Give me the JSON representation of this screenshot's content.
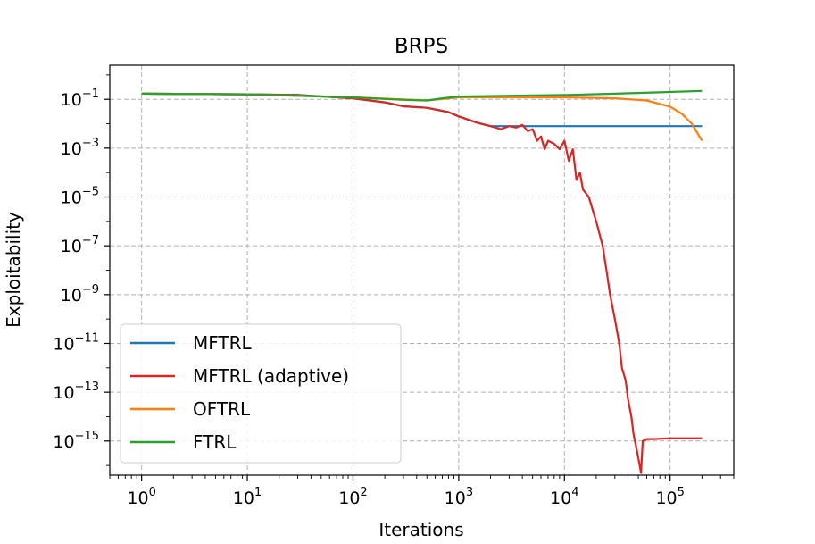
{
  "chart_data": {
    "type": "line",
    "title": "BRPS",
    "xlabel": "Iterations",
    "ylabel": "Exploitability",
    "xscale": "log",
    "yscale": "log",
    "xlim": [
      0.5,
      400000
    ],
    "ylim": [
      4e-17,
      2.5
    ],
    "grid": true,
    "grid_style": "dashed",
    "legend_position": "lower-left",
    "x_ticks": [
      {
        "base": "10",
        "exp": "0",
        "value": 1
      },
      {
        "base": "10",
        "exp": "1",
        "value": 10
      },
      {
        "base": "10",
        "exp": "2",
        "value": 100
      },
      {
        "base": "10",
        "exp": "3",
        "value": 1000
      },
      {
        "base": "10",
        "exp": "4",
        "value": 10000
      },
      {
        "base": "10",
        "exp": "5",
        "value": 100000
      }
    ],
    "y_ticks": [
      {
        "base": "10",
        "exp": "−1",
        "value": 0.1
      },
      {
        "base": "10",
        "exp": "−3",
        "value": 0.001
      },
      {
        "base": "10",
        "exp": "−5",
        "value": 1e-05
      },
      {
        "base": "10",
        "exp": "−7",
        "value": 1e-07
      },
      {
        "base": "10",
        "exp": "−9",
        "value": 1e-09
      },
      {
        "base": "10",
        "exp": "−11",
        "value": 1e-11
      },
      {
        "base": "10",
        "exp": "−13",
        "value": 1e-13
      },
      {
        "base": "10",
        "exp": "−15",
        "value": 1e-15
      }
    ],
    "series": [
      {
        "name": "MFTRL",
        "color": "#1f77b4",
        "x": [
          1,
          10,
          30,
          100,
          200,
          300,
          500,
          800,
          1000,
          1500,
          2000,
          3000,
          4000,
          5000,
          10000,
          50000,
          100000,
          200000
        ],
        "y": [
          0.17,
          0.16,
          0.15,
          0.11,
          0.075,
          0.052,
          0.045,
          0.03,
          0.02,
          0.011,
          0.008,
          0.008,
          0.008,
          0.008,
          0.008,
          0.008,
          0.008,
          0.008
        ]
      },
      {
        "name": "MFTRL (adaptive)",
        "color": "#d62728",
        "x": [
          1,
          10,
          30,
          100,
          200,
          300,
          500,
          800,
          1000,
          1500,
          2000,
          2500,
          3000,
          3500,
          4000,
          4500,
          5000,
          5500,
          6000,
          6500,
          7000,
          8000,
          9000,
          10000,
          11000,
          12000,
          13000,
          14000,
          15000,
          17000,
          19000,
          20000,
          23000,
          25000,
          27000,
          30000,
          33000,
          35000,
          38000,
          40000,
          43000,
          45000,
          48000,
          50000,
          53000,
          55000,
          58000,
          60000,
          65000,
          70000,
          100000,
          150000,
          200000
        ],
        "y": [
          0.17,
          0.16,
          0.15,
          0.11,
          0.075,
          0.052,
          0.045,
          0.03,
          0.02,
          0.011,
          0.008,
          0.006,
          0.008,
          0.007,
          0.009,
          0.005,
          0.006,
          0.002,
          0.003,
          0.0009,
          0.002,
          0.0015,
          0.0009,
          0.002,
          0.0003,
          0.0009,
          5e-05,
          0.0001,
          2e-05,
          1e-05,
          2e-06,
          1e-06,
          1e-07,
          1e-08,
          1e-09,
          1e-10,
          1e-11,
          1e-12,
          3e-13,
          5e-14,
          1e-14,
          2e-15,
          5e-16,
          2e-16,
          5e-17,
          1e-15,
          1.1e-15,
          1.2e-15,
          1.2e-15,
          1.2e-15,
          1.3e-15,
          1.3e-15,
          1.3e-15
        ]
      },
      {
        "name": "OFTRL",
        "color": "#ff7f0e",
        "x": [
          1,
          10,
          100,
          500,
          1000,
          3000,
          10000,
          30000,
          60000,
          100000,
          130000,
          160000,
          200000
        ],
        "y": [
          0.17,
          0.16,
          0.12,
          0.09,
          0.12,
          0.12,
          0.12,
          0.11,
          0.09,
          0.05,
          0.025,
          0.01,
          0.002
        ]
      },
      {
        "name": "FTRL",
        "color": "#2ca02c",
        "x": [
          1,
          10,
          100,
          300,
          500,
          700,
          1000,
          3000,
          10000,
          30000,
          100000,
          200000
        ],
        "y": [
          0.17,
          0.16,
          0.12,
          0.095,
          0.09,
          0.11,
          0.13,
          0.14,
          0.15,
          0.17,
          0.2,
          0.22
        ]
      }
    ]
  }
}
